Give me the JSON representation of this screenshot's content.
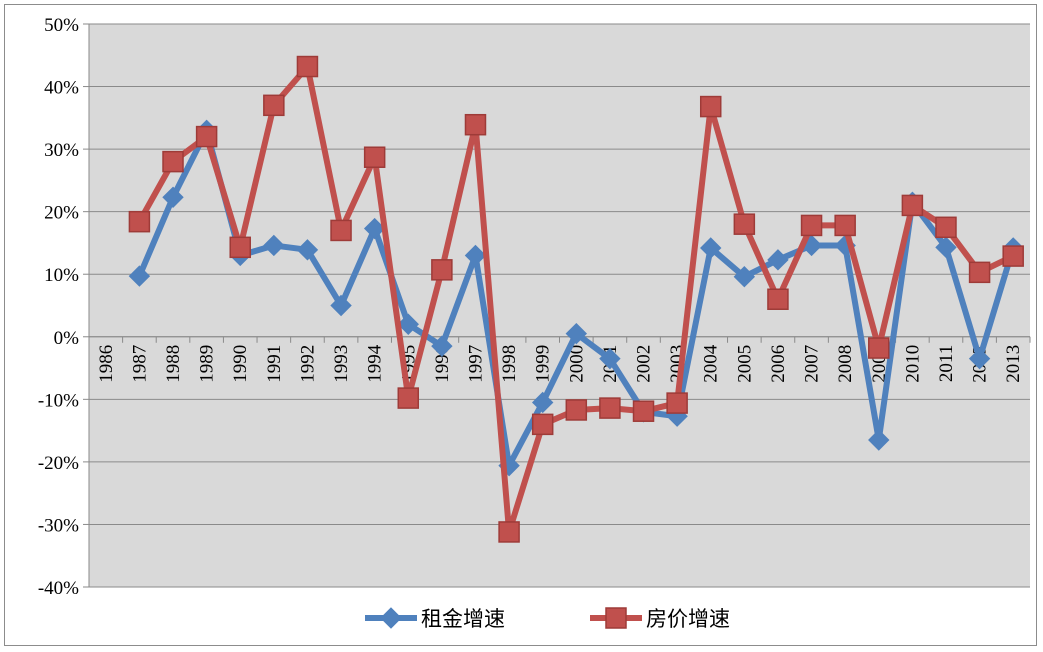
{
  "chart_data": {
    "type": "line",
    "title": "",
    "xlabel": "",
    "ylabel": "",
    "ylim": [
      -40,
      50
    ],
    "y_ticks": [
      "50%",
      "40%",
      "30%",
      "20%",
      "10%",
      "0%",
      "-10%",
      "-20%",
      "-30%",
      "-40%"
    ],
    "y_tick_values": [
      50,
      40,
      30,
      20,
      10,
      0,
      -10,
      -20,
      -30,
      -40
    ],
    "categories": [
      "1986",
      "1987",
      "1988",
      "1989",
      "1990",
      "1991",
      "1992",
      "1993",
      "1994",
      "1995",
      "1996",
      "1997",
      "1998",
      "1999",
      "2000",
      "2001",
      "2002",
      "2003",
      "2004",
      "2005",
      "2006",
      "2007",
      "2008",
      "2009",
      "2010",
      "2011",
      "2012",
      "2013"
    ],
    "grid": true,
    "legend_position": "bottom",
    "series": [
      {
        "name": "租金增速",
        "color": "#4F81BD",
        "marker": "diamond",
        "values": [
          null,
          9.7,
          22.3,
          33.0,
          13.0,
          14.6,
          13.9,
          5.0,
          17.3,
          2.0,
          -1.5,
          13.0,
          -20.6,
          -10.5,
          0.5,
          -3.5,
          -12.0,
          -12.7,
          14.2,
          9.6,
          12.3,
          14.6,
          14.6,
          -16.5,
          21.5,
          14.3,
          -3.5,
          14.2
        ]
      },
      {
        "name": "房价增速",
        "color": "#C0504D",
        "marker": "square",
        "values": [
          null,
          18.4,
          28.0,
          32.0,
          14.3,
          37.0,
          43.2,
          17.0,
          28.7,
          -9.8,
          10.7,
          33.9,
          -31.2,
          -14.0,
          -11.7,
          -11.4,
          -11.9,
          -10.6,
          36.8,
          18.0,
          6.0,
          17.8,
          17.8,
          -1.8,
          21.0,
          17.5,
          10.3,
          12.9
        ]
      }
    ]
  }
}
